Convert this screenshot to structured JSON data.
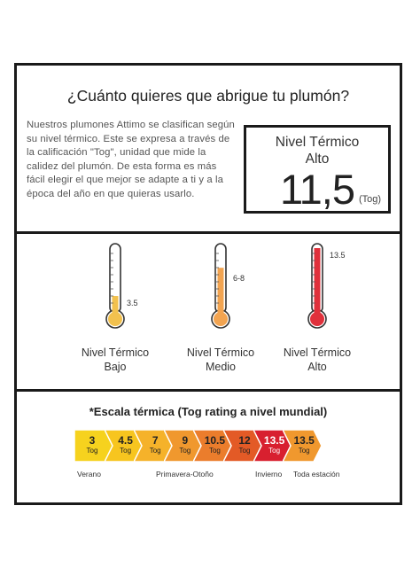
{
  "header": {
    "title": "¿Cuánto quieres que abrigue tu plumón?",
    "description": "Nuestros plumones Attimo se clasifican según su nivel térmico. Este se expresa a través de la calificación \"Tog\", unidad que mide la calidez del plumón. De esta forma es más fácil elegir el que mejor se adapte a ti y a la época del año en que quieras usarlo."
  },
  "tog_box": {
    "label_line1": "Nivel Térmico",
    "label_line2": "Alto",
    "value": "11,5",
    "unit": "(Tog)"
  },
  "thermometers": [
    {
      "level": "3.5",
      "fill": 0.27,
      "caption_line1": "Nivel Térmico",
      "caption_line2": "Bajo",
      "color": "#f2c14e",
      "color2": "#e9a23b"
    },
    {
      "level": "6-8",
      "fill": 0.7,
      "caption_line1": "Nivel Térmico",
      "caption_line2": "Medio",
      "color": "#f2a451",
      "color2": "#e47c1e"
    },
    {
      "level": "13.5",
      "fill": 1.0,
      "caption_line1": "Nivel Térmico",
      "caption_line2": "Alto",
      "color": "#e0303b",
      "color2": "#b3141f"
    }
  ],
  "scale": {
    "title": "*Escala térmica (Tog rating a nivel mundial)",
    "steps": [
      {
        "value": "3",
        "unit": "Tog",
        "color": "#f6d21e",
        "text_color": "#222"
      },
      {
        "value": "4.5",
        "unit": "Tog",
        "color": "#f7c51f",
        "text_color": "#222"
      },
      {
        "value": "7",
        "unit": "Tog",
        "color": "#f5b22a",
        "text_color": "#222"
      },
      {
        "value": "9",
        "unit": "Tog",
        "color": "#f0982e",
        "text_color": "#222"
      },
      {
        "value": "10.5",
        "unit": "Tog",
        "color": "#eb7d2c",
        "text_color": "#222"
      },
      {
        "value": "12",
        "unit": "Tog",
        "color": "#e35a26",
        "text_color": "#222"
      },
      {
        "value": "13.5",
        "unit": "Tog",
        "color": "#d8202f",
        "text_color": "#ffffff"
      },
      {
        "value": "13.5",
        "unit": "Tog",
        "color": "#f0982e",
        "text_color": "#222"
      }
    ],
    "seasons": [
      "Verano",
      "Primavera-Otoño",
      "Invierno",
      "Toda estación"
    ]
  }
}
